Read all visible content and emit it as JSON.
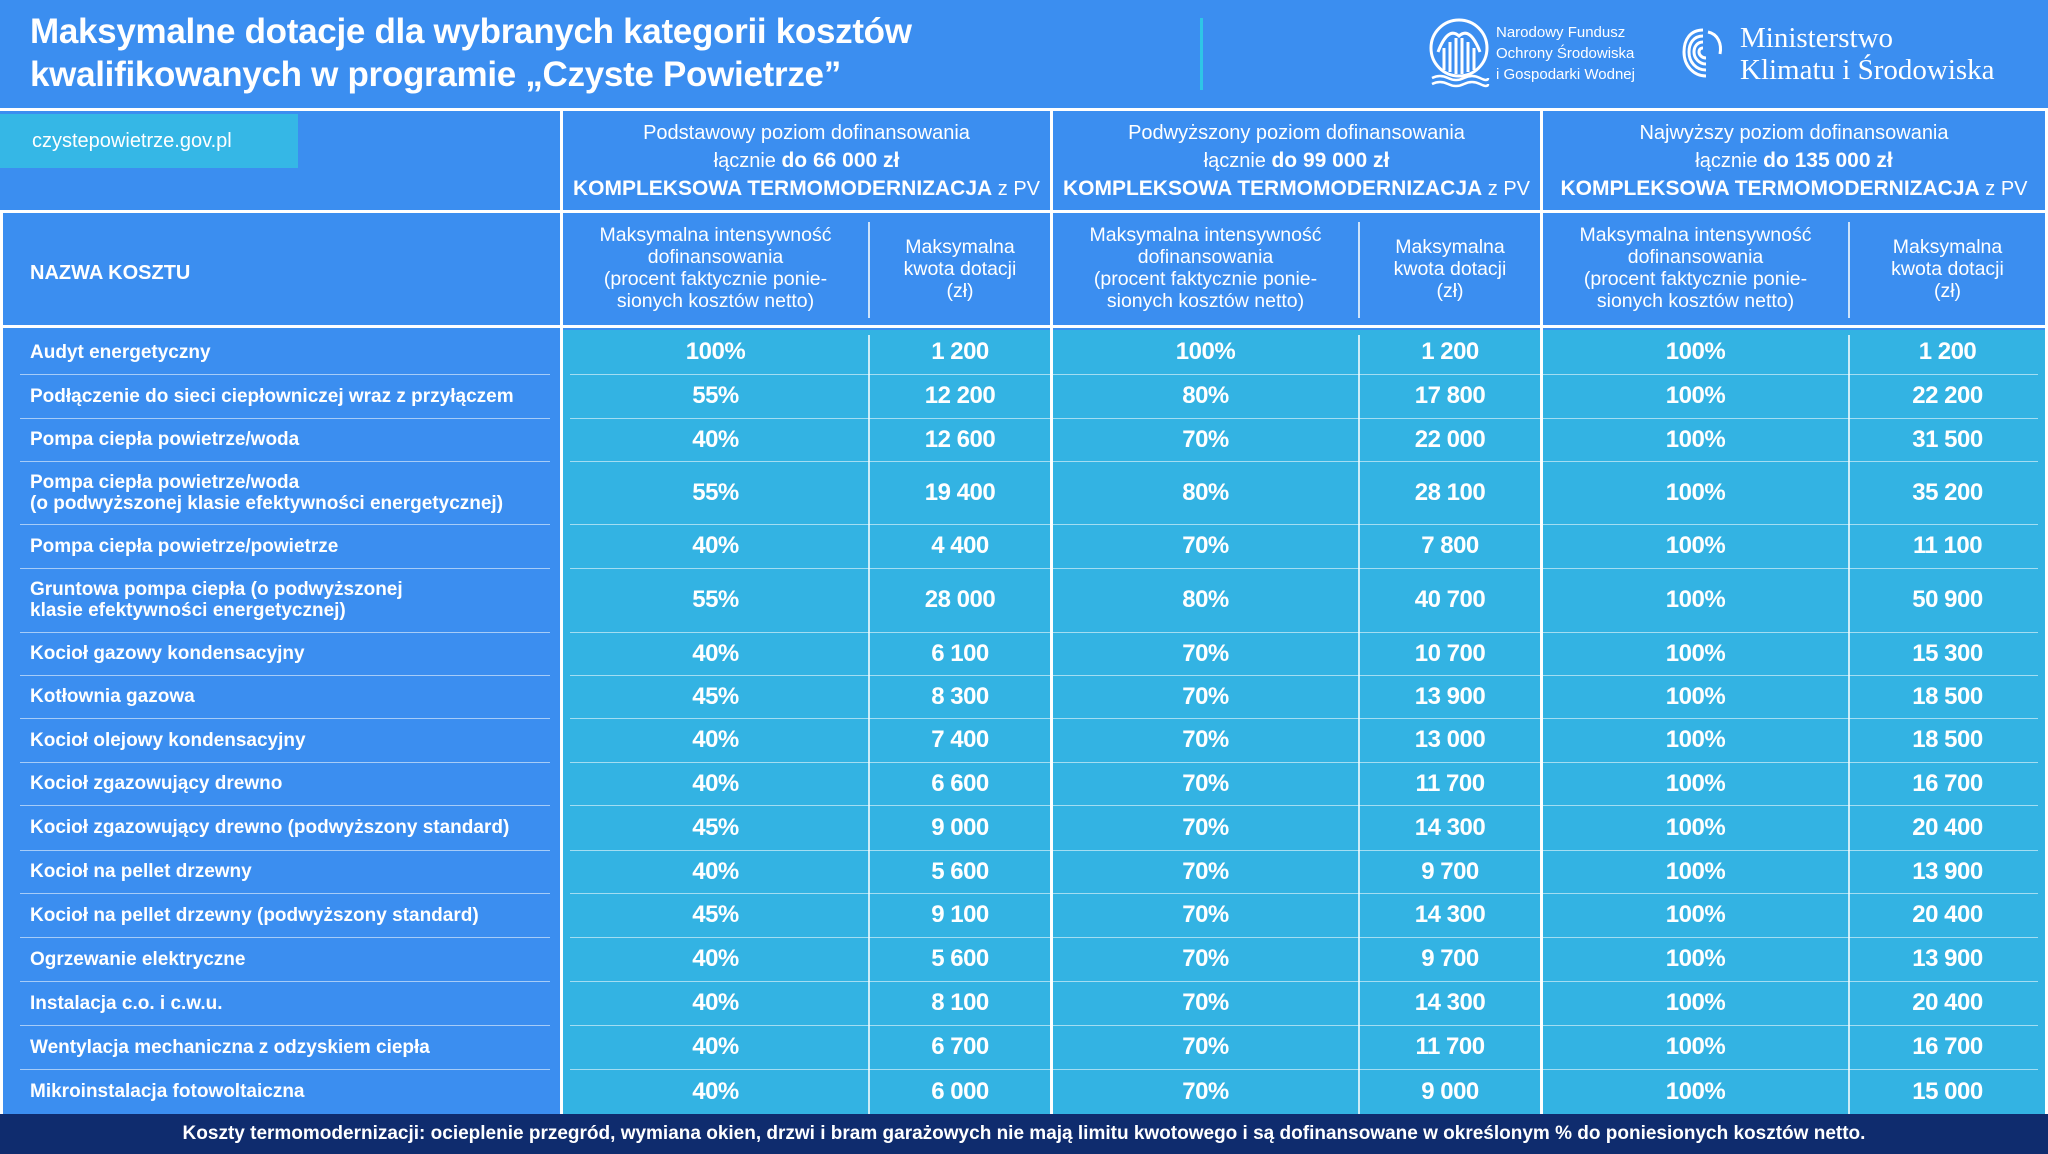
{
  "header": {
    "title_line1": "Maksymalne dotacje dla wybranych kategorii kosztów",
    "title_line2": "kwalifikowanych w programie „Czyste Powietrze”",
    "nfos_line1": "Narodowy Fundusz",
    "nfos_line2": "Ochrony Środowiska",
    "nfos_line3": "i Gospodarki Wodnej",
    "ministry_line1": "Ministerstwo",
    "ministry_line2": "Klimatu i Środowiska"
  },
  "site_link": "czystepowietrze.gov.pl",
  "tiers": [
    {
      "line1": "Podstawowy poziom dofinansowania",
      "line2_prefix": "łącznie",
      "line2_amount": "do  66 000 zł",
      "line3_bold": "KOMPLEKSOWA TERMOMODERNIZACJA",
      "line3_suffix": "z PV"
    },
    {
      "line1": "Podwyższony poziom dofinansowania",
      "line2_prefix": "łącznie",
      "line2_amount": "do 99 000 zł",
      "line3_bold": "KOMPLEKSOWA TERMOMODERNIZACJA",
      "line3_suffix": "z PV"
    },
    {
      "line1": "Najwyższy poziom dofinansowania",
      "line2_prefix": "łącznie",
      "line2_amount": "do 135 000 zł",
      "line3_bold": "KOMPLEKSOWA TERMOMODERNIZACJA",
      "line3_suffix": "z PV"
    }
  ],
  "column_headers": {
    "name": "NAZWA KOSZTU",
    "intensity": [
      "Maksymalna intensywność",
      "dofinansowania",
      "(procent faktycznie ponie-",
      "sionych kosztów netto)"
    ],
    "amount": [
      "Maksymalna",
      "kwota dotacji",
      "(zł)"
    ]
  },
  "rows": [
    {
      "label1": "Audyt energetyczny",
      "label2": "",
      "v": [
        "100%",
        "1 200",
        "100%",
        "1 200",
        "100%",
        "1 200"
      ]
    },
    {
      "label1": "Podłączenie do sieci ciepłowniczej wraz z przyłączem",
      "label2": "",
      "v": [
        "55%",
        "12 200",
        "80%",
        "17 800",
        "100%",
        "22 200"
      ]
    },
    {
      "label1": "Pompa ciepła powietrze/woda",
      "label2": "",
      "v": [
        "40%",
        "12 600",
        "70%",
        "22 000",
        "100%",
        "31 500"
      ]
    },
    {
      "label1": "Pompa ciepła powietrze/woda",
      "label2": "(o podwyższonej klasie efektywności energetycznej)",
      "v": [
        "55%",
        "19 400",
        "80%",
        "28 100",
        "100%",
        "35 200"
      ]
    },
    {
      "label1": "Pompa ciepła powietrze/powietrze",
      "label2": "",
      "v": [
        "40%",
        "4 400",
        "70%",
        "7 800",
        "100%",
        "11 100"
      ]
    },
    {
      "label1": "Gruntowa pompa ciepła (o podwyższonej",
      "label2": "klasie efektywności energetycznej)",
      "v": [
        "55%",
        "28 000",
        "80%",
        "40 700",
        "100%",
        "50 900"
      ]
    },
    {
      "label1": "Kocioł gazowy kondensacyjny",
      "label2": "",
      "v": [
        "40%",
        "6 100",
        "70%",
        "10 700",
        "100%",
        "15 300"
      ]
    },
    {
      "label1": "Kotłownia gazowa",
      "label2": "",
      "v": [
        "45%",
        "8 300",
        "70%",
        "13 900",
        "100%",
        "18 500"
      ]
    },
    {
      "label1": "Kocioł olejowy kondensacyjny",
      "label2": "",
      "v": [
        "40%",
        "7 400",
        "70%",
        "13 000",
        "100%",
        "18 500"
      ]
    },
    {
      "label1": "Kocioł zgazowujący drewno",
      "label2": "",
      "v": [
        "40%",
        "6 600",
        "70%",
        "11 700",
        "100%",
        "16 700"
      ]
    },
    {
      "label1": "Kocioł zgazowujący drewno (podwyższony standard)",
      "label2": "",
      "v": [
        "45%",
        "9 000",
        "70%",
        "14 300",
        "100%",
        "20 400"
      ]
    },
    {
      "label1": "Kocioł na pellet drzewny",
      "label2": "",
      "v": [
        "40%",
        "5 600",
        "70%",
        "9 700",
        "100%",
        "13 900"
      ]
    },
    {
      "label1": "Kocioł na pellet drzewny (podwyższony standard)",
      "label2": "",
      "v": [
        "45%",
        "9 100",
        "70%",
        "14 300",
        "100%",
        "20 400"
      ]
    },
    {
      "label1": "Ogrzewanie elektryczne",
      "label2": "",
      "v": [
        "40%",
        "5 600",
        "70%",
        "9 700",
        "100%",
        "13 900"
      ]
    },
    {
      "label1": "Instalacja c.o. i c.w.u.",
      "label2": "",
      "v": [
        "40%",
        "8 100",
        "70%",
        "14 300",
        "100%",
        "20 400"
      ]
    },
    {
      "label1": "Wentylacja mechaniczna z odzyskiem ciepła",
      "label2": "",
      "v": [
        "40%",
        "6 700",
        "70%",
        "11 700",
        "100%",
        "16 700"
      ]
    },
    {
      "label1": "Mikroinstalacja fotowoltaiczna",
      "label2": "",
      "v": [
        "40%",
        "6 000",
        "70%",
        "9 000",
        "100%",
        "15 000"
      ]
    }
  ],
  "footer": "Koszty  termomodernizacji: ocieplenie przegród, wymiana okien, drzwi i bram garażowych nie mają limitu kwotowego i są dofinansowane w określonym % do poniesionych kosztów netto."
}
